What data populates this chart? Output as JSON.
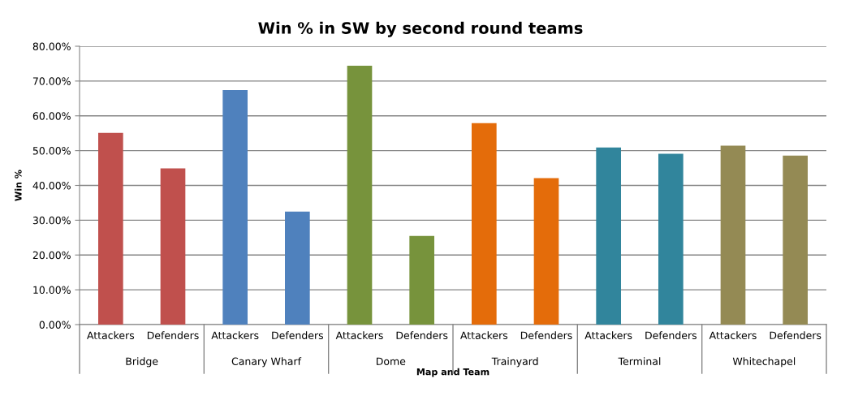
{
  "chart_data": {
    "type": "bar",
    "title": "Win % in SW by second round teams",
    "xlabel": "Map and Team",
    "ylabel": "Win %",
    "categories": [
      "Attackers",
      "Defenders",
      "Attackers",
      "Defenders",
      "Attackers",
      "Defenders",
      "Attackers",
      "Defenders",
      "Attackers",
      "Defenders",
      "Attackers",
      "Defenders"
    ],
    "values": [
      55.1,
      44.9,
      67.4,
      32.5,
      74.4,
      25.5,
      57.9,
      42.1,
      50.9,
      49.1,
      51.4,
      48.6
    ],
    "colors": [
      "#c0504d",
      "#c0504d",
      "#4f81bd",
      "#4f81bd",
      "#77933c",
      "#77933c",
      "#e46c0a",
      "#e46c0a",
      "#31859c",
      "#31859c",
      "#948a54",
      "#948a54"
    ],
    "annotations": [
      "Bridge",
      "Canary Wharf",
      "Dome",
      "Trainyard",
      "Terminal",
      "Whitechapel"
    ],
    "ylim": [
      0,
      80
    ],
    "yticks": [
      {
        "value": 0,
        "label": "0.00%"
      },
      {
        "value": 10,
        "label": "10.00%"
      },
      {
        "value": 20,
        "label": "20.00%"
      },
      {
        "value": 30,
        "label": "30.00%"
      },
      {
        "value": 40,
        "label": "40.00%"
      },
      {
        "value": 50,
        "label": "50.00%"
      },
      {
        "value": 60,
        "label": "60.00%"
      },
      {
        "value": 70,
        "label": "70.00%"
      },
      {
        "value": 80,
        "label": "80.00%"
      }
    ],
    "grid": "y",
    "legend": false
  }
}
